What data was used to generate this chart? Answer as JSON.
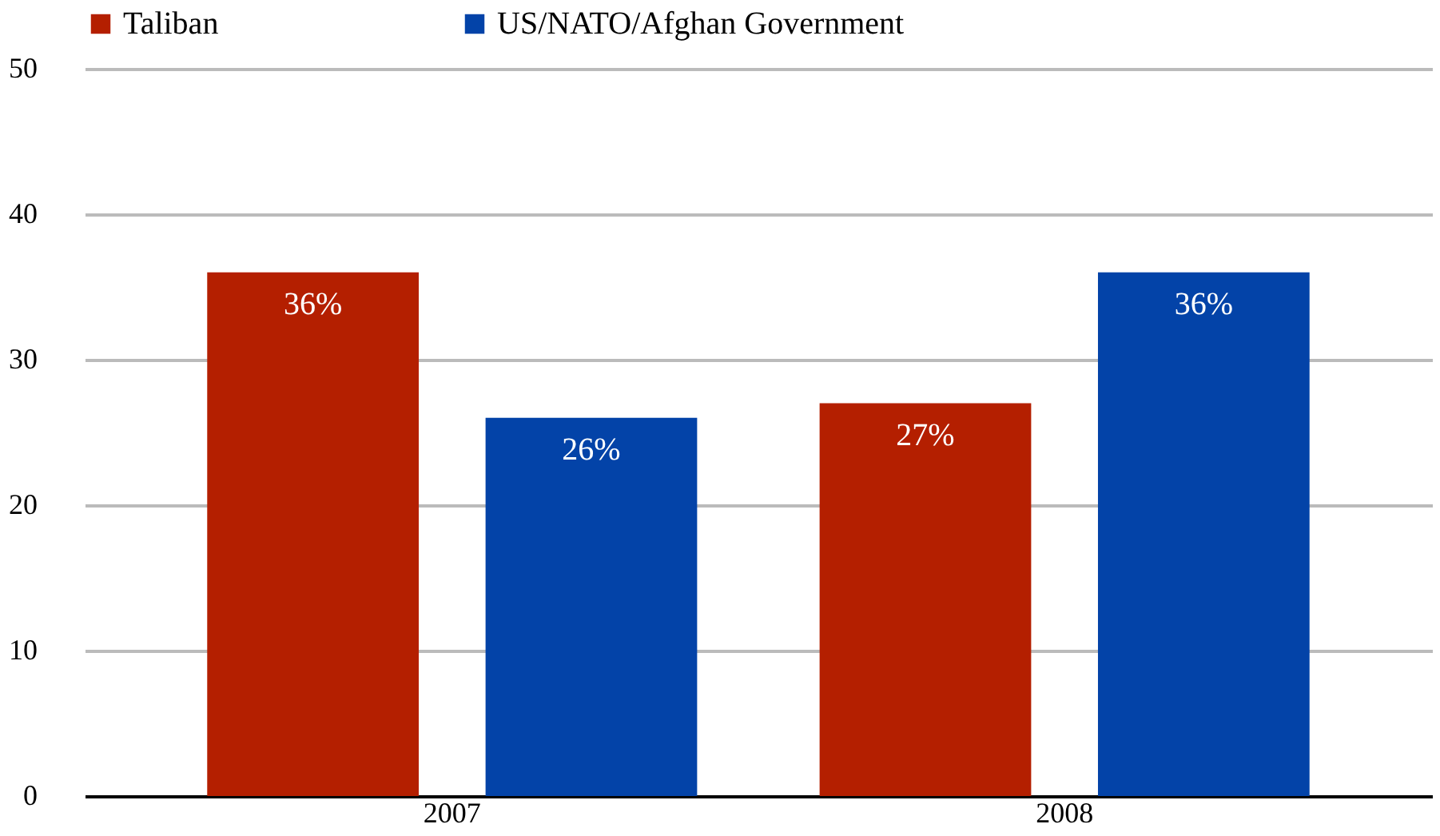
{
  "chart_data": {
    "type": "bar",
    "categories": [
      "2007",
      "2008"
    ],
    "series": [
      {
        "name": "Taliban",
        "color": "#b41f00",
        "values": [
          36,
          27
        ],
        "value_labels": [
          "36%",
          "27%"
        ]
      },
      {
        "name": "US/NATO/Afghan Government",
        "color": "#0343a8",
        "values": [
          26,
          36
        ],
        "value_labels": [
          "26%",
          "36%"
        ]
      }
    ],
    "ylim": [
      0,
      50
    ],
    "yticks": [
      0,
      10,
      20,
      30,
      40,
      50
    ],
    "grid": "y",
    "legend": "top"
  }
}
